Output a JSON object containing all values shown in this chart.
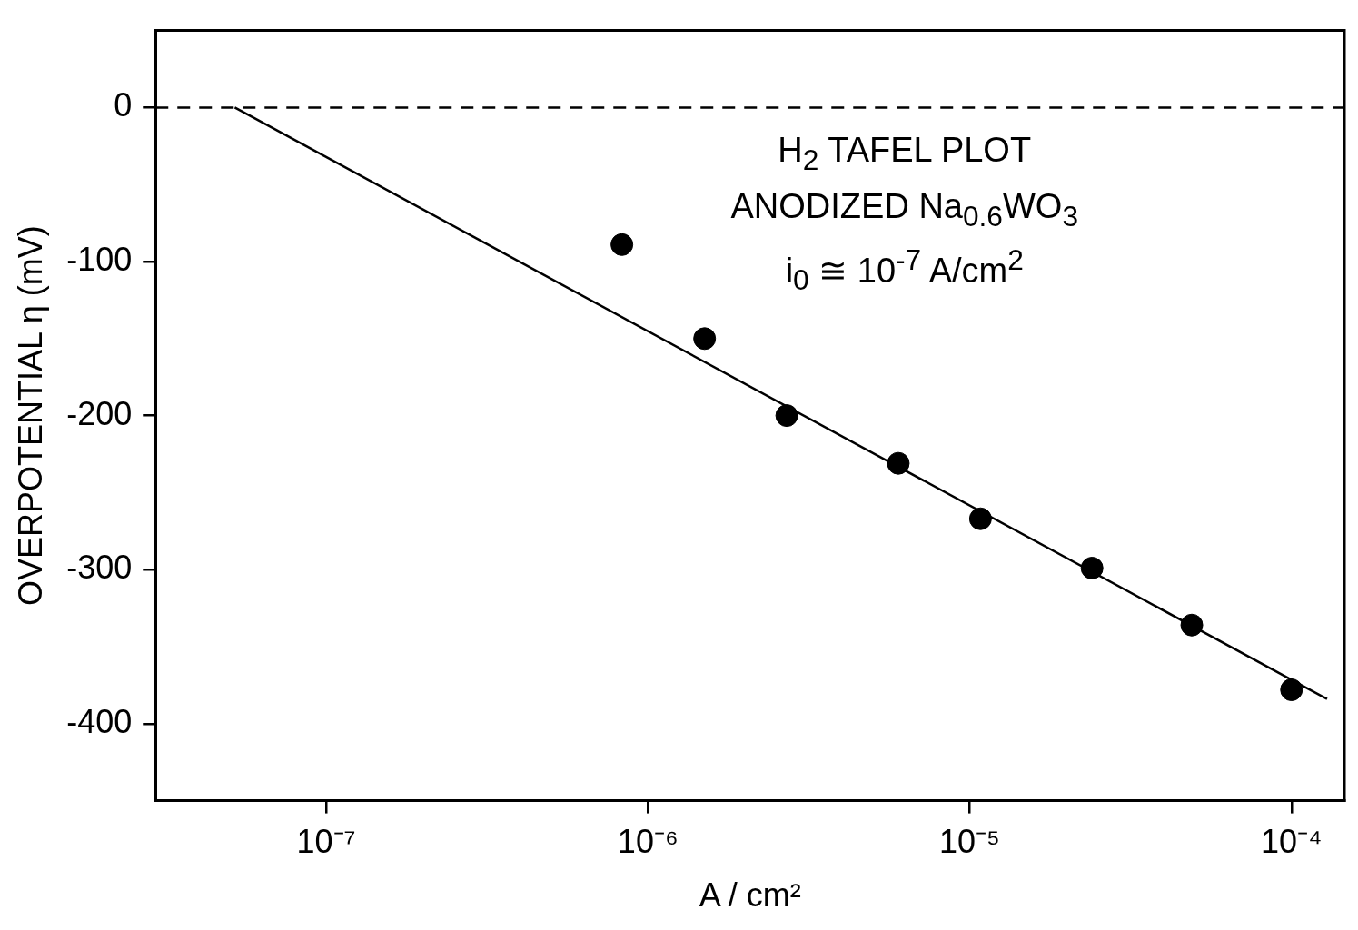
{
  "chart_data": {
    "type": "scatter",
    "xlabel": "A / cm²",
    "ylabel": "OVERPOTENTIAL η (mV)",
    "log": "x",
    "grid": false,
    "legend": false,
    "marker": "circle",
    "xlim": [
      2.95e-08,
      0.000146
    ],
    "ylim": [
      -450,
      50
    ],
    "xticks": [
      {
        "value": 1e-07,
        "label": "10⁻⁷"
      },
      {
        "value": 1e-06,
        "label": "10⁻⁶"
      },
      {
        "value": 1e-05,
        "label": "10⁻⁵"
      },
      {
        "value": 0.0001,
        "label": "10⁻⁴"
      }
    ],
    "yticks": [
      0,
      -100,
      -200,
      -300,
      -400
    ],
    "series": [
      {
        "color": "#000000",
        "x": [
          8.3e-07,
          1.5e-06,
          2.7e-06,
          6e-06,
          1.08e-05,
          2.4e-05,
          4.9e-05,
          0.0001
        ],
        "values": [
          -89,
          -150,
          -200,
          -231,
          -267,
          -299,
          -336,
          -378
        ]
      },
      {
        "type": "line",
        "color": "#000000",
        "line_style": "solid",
        "marker": "none",
        "x": [
          5.2e-08,
          0.000129
        ],
        "values": [
          0,
          -384
        ]
      }
    ],
    "ref_lines": [
      {
        "axis": "y",
        "value": 0,
        "color": "#000000",
        "line_style": "dashed"
      }
    ],
    "annotations": [
      "H$_{2}$ TAFEL PLOT",
      "ANODIZED Na$_{0.6}$WO$_{3}$",
      "i$_{0}$ ≅ 10$^{-7}$ A/cm$^{2}$"
    ]
  }
}
